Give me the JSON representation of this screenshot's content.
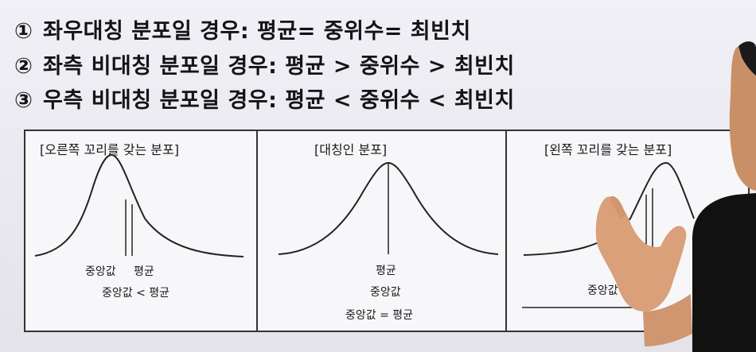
{
  "rules": [
    {
      "num": "①",
      "text": "좌우대칭 분포일 경우: 평균= 중위수= 최빈치"
    },
    {
      "num": "②",
      "text": "좌측 비대칭 분포일 경우: 평균 > 중위수 > 최빈치"
    },
    {
      "num": "③",
      "text": "우측 비대칭 분포일 경우: 평균 < 중위수 < 최빈치"
    }
  ],
  "panels": {
    "right_tail": {
      "title": "[오른쪽 꼬리를 갖는 분포]",
      "median_label": "중앙값",
      "mean_label": "평균",
      "relation": "중앙값 < 평균"
    },
    "symmetric": {
      "title": "[대칭인 분포]",
      "mean_label": "평균",
      "median_label": "중앙값",
      "relation": "중앙값 = 평균"
    },
    "left_tail": {
      "title": "[왼쪽 꼬리를 갖는 분포]",
      "median_label": "중앙값"
    }
  },
  "colors": {
    "background": "#ecebf2",
    "text": "#141414",
    "skin": "#d9a07a",
    "shirt": "#111111"
  }
}
